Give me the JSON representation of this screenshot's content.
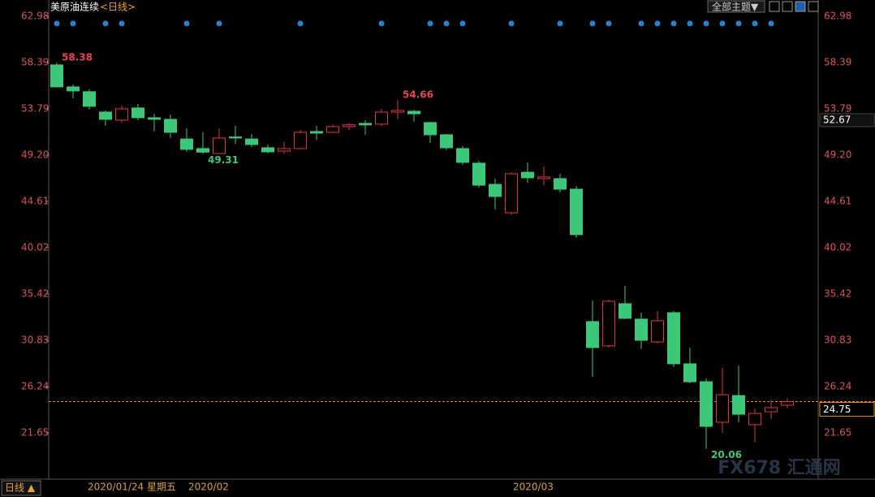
{
  "chart_data": {
    "type": "candlestick",
    "title": "美原油连续",
    "subtitle": "<日线>",
    "theme_button": "全部主题▼",
    "period_tab": "日线 ▲",
    "cursor_date": "2020/01/24 星期五",
    "watermark": "FX678 汇通网",
    "categories": [
      null,
      null,
      null,
      null,
      null,
      null,
      null,
      null,
      null,
      "2020/02",
      null,
      null,
      null,
      null,
      null,
      null,
      null,
      null,
      null,
      null,
      null,
      null,
      null,
      null,
      null,
      null,
      null,
      null,
      null,
      "2020/03",
      null,
      null,
      null,
      null,
      null,
      null,
      null,
      null,
      null,
      null,
      null,
      null,
      null,
      null,
      null,
      null
    ],
    "open": [
      58.15,
      55.97,
      55.49,
      53.47,
      52.67,
      53.88,
      52.91,
      52.75,
      50.8,
      49.85,
      49.36,
      51.0,
      50.8,
      49.93,
      49.6,
      49.85,
      51.54,
      51.46,
      52.03,
      52.35,
      52.27,
      53.47,
      53.55,
      52.43,
      51.22,
      49.85,
      48.4,
      46.3,
      43.48,
      47.5,
      46.87,
      46.87,
      45.82,
      32.69,
      30.27,
      34.46,
      32.93,
      30.67,
      33.57,
      28.5,
      26.72,
      22.7,
      25.35,
      22.46,
      23.74,
      24.39
    ],
    "high": [
      58.38,
      56.21,
      55.73,
      53.63,
      54.12,
      54.28,
      53.3,
      53.23,
      51.86,
      51.46,
      51.86,
      52.1,
      51.3,
      50.25,
      50.5,
      51.7,
      52.1,
      52.2,
      52.35,
      52.67,
      53.79,
      54.66,
      53.7,
      52.51,
      51.3,
      50.1,
      48.64,
      46.87,
      47.5,
      48.48,
      48.07,
      47.35,
      46.14,
      34.78,
      34.86,
      36.23,
      33.57,
      33.73,
      33.73,
      30.11,
      27.05,
      28.1,
      28.34,
      24.07,
      24.95,
      25.1
    ],
    "low": [
      55.97,
      54.84,
      53.72,
      52.11,
      52.4,
      52.67,
      51.54,
      50.9,
      49.53,
      49.31,
      49.36,
      50.3,
      50.0,
      49.4,
      49.36,
      49.77,
      50.7,
      51.38,
      51.7,
      51.2,
      52.11,
      52.75,
      52.5,
      50.41,
      49.69,
      48.24,
      45.98,
      43.8,
      43.24,
      46.46,
      46.22,
      45.5,
      40.99,
      27.2,
      30.11,
      32.93,
      29.95,
      30.51,
      28.18,
      26.56,
      20.06,
      21.65,
      22.7,
      20.7,
      23.0,
      24.07
    ],
    "close": [
      55.97,
      55.57,
      54.04,
      52.75,
      53.79,
      52.91,
      52.75,
      51.46,
      49.77,
      49.5,
      50.9,
      50.9,
      50.25,
      49.53,
      49.85,
      51.46,
      51.38,
      52.03,
      52.2,
      52.2,
      53.47,
      53.63,
      53.3,
      51.22,
      49.93,
      48.48,
      46.22,
      45.1,
      47.35,
      46.95,
      47.03,
      45.82,
      41.31,
      30.11,
      34.7,
      33.01,
      30.83,
      32.77,
      28.5,
      26.72,
      22.29,
      25.43,
      23.5,
      23.58,
      24.15,
      24.75
    ],
    "labeled_points": [
      {
        "field": "high",
        "index": 0
      },
      {
        "field": "low",
        "index": 9
      },
      {
        "field": "high",
        "index": 21
      },
      {
        "field": "low",
        "index": 40
      }
    ],
    "up_color": "#e8333d",
    "down_color": "#3cc878",
    "last_price": 24.75,
    "marker_price": 52.67,
    "ylim": [
      17.22,
      63.62
    ],
    "yticks": [
      62.98,
      58.39,
      53.79,
      {
        "value": 49.2,
        "label": "49.20"
      },
      44.61,
      40.02,
      35.42,
      30.83,
      26.24,
      21.65
    ]
  }
}
